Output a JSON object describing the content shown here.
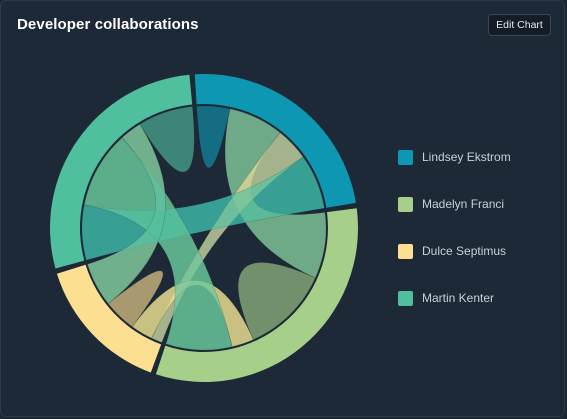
{
  "header": {
    "title": "Developer collaborations",
    "edit_button_label": "Edit Chart"
  },
  "colors": {
    "background": "#1e2937"
  },
  "chart_data": {
    "type": "chord",
    "title": "Developer collaborations",
    "groups": [
      {
        "name": "Lindsey Ekstrom",
        "color": "#0e97b2"
      },
      {
        "name": "Madelyn Franci",
        "color": "#a6d08a"
      },
      {
        "name": "Dulce Septimus",
        "color": "#fddf92"
      },
      {
        "name": "Martin Kenter",
        "color": "#4fbf9e"
      }
    ],
    "matrix": [
      [
        3,
        5,
        3,
        5
      ],
      [
        6,
        8,
        2,
        6
      ],
      [
        1,
        2,
        3,
        4
      ],
      [
        5,
        7,
        2,
        5
      ]
    ],
    "legend_position": "right"
  }
}
